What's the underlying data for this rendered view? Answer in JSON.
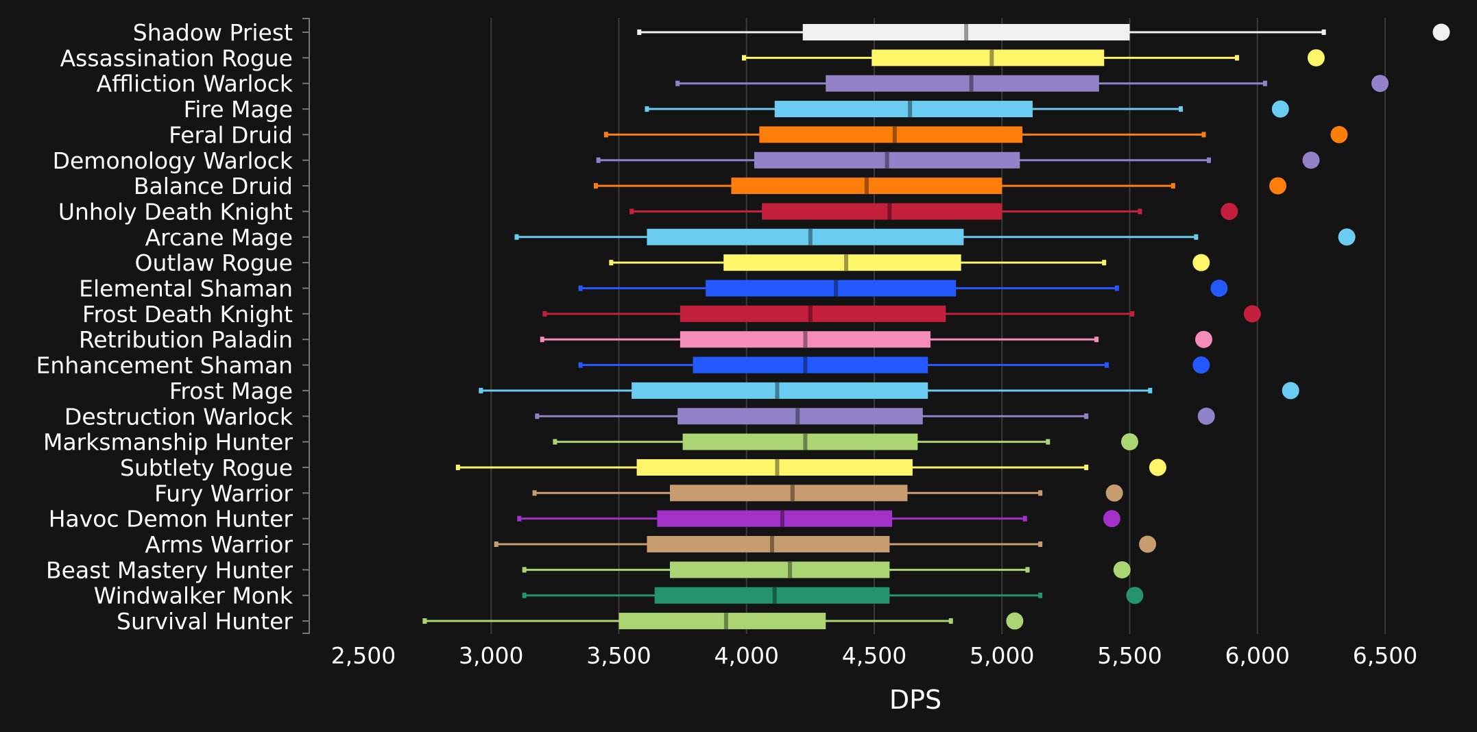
{
  "chart_data": {
    "type": "box",
    "title": "",
    "xlabel": "DPS",
    "ylabel": "",
    "xlim": [
      2500,
      6700
    ],
    "x_ticks": [
      2500,
      3000,
      3500,
      4000,
      4500,
      5000,
      5500,
      6000,
      6500
    ],
    "x_tick_labels": [
      "2,500",
      "3,000",
      "3,500",
      "4,000",
      "4,500",
      "5,000",
      "5,500",
      "6,000",
      "6,500"
    ],
    "grid": "vertical",
    "categories": [
      "Shadow Priest",
      "Assassination Rogue",
      "Affliction Warlock",
      "Fire Mage",
      "Feral Druid",
      "Demonology Warlock",
      "Balance Druid",
      "Unholy Death Knight",
      "Arcane Mage",
      "Outlaw Rogue",
      "Elemental Shaman",
      "Frost Death Knight",
      "Retribution Paladin",
      "Enhancement Shaman",
      "Frost Mage",
      "Destruction Warlock",
      "Marksmanship Hunter",
      "Subtlety Rogue",
      "Fury Warrior",
      "Havoc Demon Hunter",
      "Arms Warrior",
      "Beast Mastery Hunter",
      "Windwalker Monk",
      "Survival Hunter"
    ],
    "series": [
      {
        "min": 3580,
        "q1": 4220,
        "median": 4860,
        "q3": 5500,
        "max": 6260,
        "outlier": 6720,
        "color": "#f0f0f0"
      },
      {
        "min": 3990,
        "q1": 4490,
        "median": 4960,
        "q3": 5400,
        "max": 5920,
        "outlier": 6230,
        "color": "#fff569"
      },
      {
        "min": 3730,
        "q1": 4310,
        "median": 4880,
        "q3": 5380,
        "max": 6030,
        "outlier": 6480,
        "color": "#9482c9"
      },
      {
        "min": 3610,
        "q1": 4110,
        "median": 4640,
        "q3": 5120,
        "max": 5700,
        "outlier": 6090,
        "color": "#69ccf0"
      },
      {
        "min": 3450,
        "q1": 4050,
        "median": 4580,
        "q3": 5080,
        "max": 5790,
        "outlier": 6320,
        "color": "#ff7d0a"
      },
      {
        "min": 3420,
        "q1": 4030,
        "median": 4550,
        "q3": 5070,
        "max": 5810,
        "outlier": 6210,
        "color": "#9482c9"
      },
      {
        "min": 3410,
        "q1": 3940,
        "median": 4470,
        "q3": 5000,
        "max": 5670,
        "outlier": 6080,
        "color": "#ff7d0a"
      },
      {
        "min": 3550,
        "q1": 4060,
        "median": 4560,
        "q3": 5000,
        "max": 5540,
        "outlier": 5890,
        "color": "#c41f3b"
      },
      {
        "min": 3100,
        "q1": 3610,
        "median": 4250,
        "q3": 4850,
        "max": 5760,
        "outlier": 6350,
        "color": "#69ccf0"
      },
      {
        "min": 3470,
        "q1": 3910,
        "median": 4390,
        "q3": 4840,
        "max": 5400,
        "outlier": 5780,
        "color": "#fff569"
      },
      {
        "min": 3350,
        "q1": 3840,
        "median": 4350,
        "q3": 4820,
        "max": 5450,
        "outlier": 5850,
        "color": "#2459ff"
      },
      {
        "min": 3210,
        "q1": 3740,
        "median": 4250,
        "q3": 4780,
        "max": 5510,
        "outlier": 5980,
        "color": "#c41f3b"
      },
      {
        "min": 3200,
        "q1": 3740,
        "median": 4230,
        "q3": 4720,
        "max": 5370,
        "outlier": 5790,
        "color": "#f58cba"
      },
      {
        "min": 3350,
        "q1": 3790,
        "median": 4230,
        "q3": 4710,
        "max": 5410,
        "outlier": 5780,
        "color": "#2459ff"
      },
      {
        "min": 2960,
        "q1": 3550,
        "median": 4120,
        "q3": 4710,
        "max": 5580,
        "outlier": 6130,
        "color": "#69ccf0"
      },
      {
        "min": 3180,
        "q1": 3730,
        "median": 4200,
        "q3": 4690,
        "max": 5330,
        "outlier": 5800,
        "color": "#9482c9"
      },
      {
        "min": 3250,
        "q1": 3750,
        "median": 4230,
        "q3": 4670,
        "max": 5180,
        "outlier": 5500,
        "color": "#abd473"
      },
      {
        "min": 2870,
        "q1": 3570,
        "median": 4120,
        "q3": 4650,
        "max": 5330,
        "outlier": 5610,
        "color": "#fff569"
      },
      {
        "min": 3170,
        "q1": 3700,
        "median": 4180,
        "q3": 4630,
        "max": 5150,
        "outlier": 5440,
        "color": "#c79c6e"
      },
      {
        "min": 3110,
        "q1": 3650,
        "median": 4140,
        "q3": 4570,
        "max": 5090,
        "outlier": 5430,
        "color": "#a330c9"
      },
      {
        "min": 3020,
        "q1": 3610,
        "median": 4100,
        "q3": 4560,
        "max": 5150,
        "outlier": 5570,
        "color": "#c79c6e"
      },
      {
        "min": 3130,
        "q1": 3700,
        "median": 4170,
        "q3": 4560,
        "max": 5100,
        "outlier": 5470,
        "color": "#abd473"
      },
      {
        "min": 3130,
        "q1": 3640,
        "median": 4110,
        "q3": 4560,
        "max": 5150,
        "outlier": 5520,
        "color": "#23946f"
      },
      {
        "min": 2740,
        "q1": 3500,
        "median": 3920,
        "q3": 4310,
        "max": 4800,
        "outlier": 5050,
        "color": "#abd473"
      }
    ]
  }
}
